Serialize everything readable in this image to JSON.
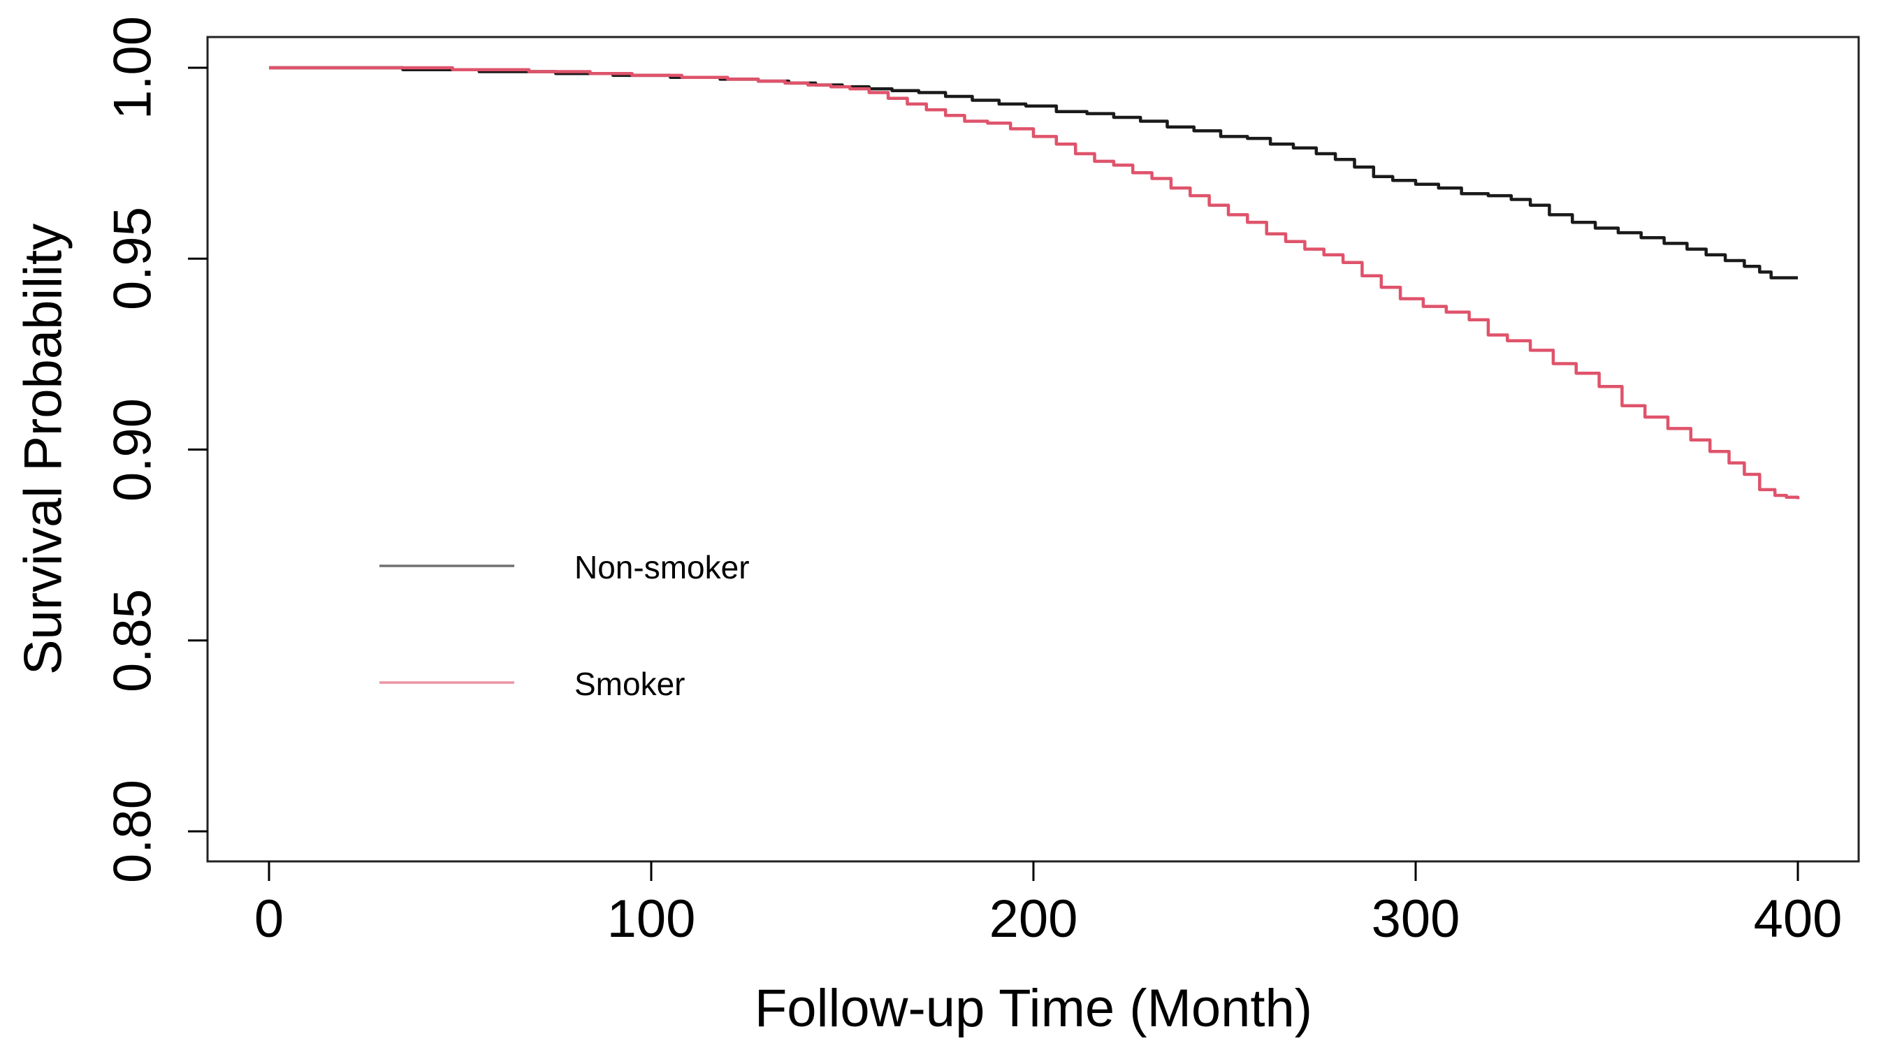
{
  "figure": {
    "background": "#ffffff",
    "frame_color": "#222222"
  },
  "chart_data": {
    "type": "line",
    "subtype": "kaplan-meier-step",
    "title": "",
    "xlabel": "Follow-up Time (Month)",
    "ylabel": "Survival Probability",
    "xlim": [
      0,
      400
    ],
    "ylim": [
      0.8,
      1.0
    ],
    "grid": false,
    "x_ticks": {
      "values": [
        0,
        100,
        200,
        300,
        400
      ],
      "labels": [
        "0",
        "100",
        "200",
        "300",
        "400"
      ]
    },
    "y_ticks": {
      "values": [
        1.0,
        0.95,
        0.9,
        0.85,
        0.8
      ],
      "labels": [
        "1.00",
        "0.95",
        "0.90",
        "0.85",
        "0.80"
      ]
    },
    "legend": {
      "position": "inside-lower-left",
      "entries": [
        {
          "label": "Non-smoker",
          "color": "#1a1a1a"
        },
        {
          "label": "Smoker",
          "color": "#df536b"
        }
      ]
    },
    "series": [
      {
        "name": "Non-smoker",
        "color": "#1a1a1a",
        "step": true,
        "points": [
          [
            0,
            1.0
          ],
          [
            30,
            1.0
          ],
          [
            35,
            0.9995
          ],
          [
            55,
            0.999
          ],
          [
            75,
            0.9985
          ],
          [
            90,
            0.998
          ],
          [
            105,
            0.9975
          ],
          [
            118,
            0.997
          ],
          [
            128,
            0.9965
          ],
          [
            136,
            0.996
          ],
          [
            143,
            0.9955
          ],
          [
            150,
            0.995
          ],
          [
            157,
            0.9945
          ],
          [
            163,
            0.994
          ],
          [
            170,
            0.9935
          ],
          [
            177,
            0.9925
          ],
          [
            184,
            0.9915
          ],
          [
            191,
            0.9905
          ],
          [
            198,
            0.99
          ],
          [
            206,
            0.9885
          ],
          [
            214,
            0.988
          ],
          [
            221,
            0.987
          ],
          [
            228,
            0.986
          ],
          [
            235,
            0.9845
          ],
          [
            242,
            0.9835
          ],
          [
            249,
            0.982
          ],
          [
            256,
            0.9815
          ],
          [
            262,
            0.98
          ],
          [
            268,
            0.979
          ],
          [
            274,
            0.9775
          ],
          [
            279,
            0.976
          ],
          [
            284,
            0.974
          ],
          [
            289,
            0.9715
          ],
          [
            294,
            0.9705
          ],
          [
            300,
            0.9695
          ],
          [
            306,
            0.9685
          ],
          [
            312,
            0.967
          ],
          [
            319,
            0.9665
          ],
          [
            325,
            0.9655
          ],
          [
            330,
            0.964
          ],
          [
            335,
            0.9615
          ],
          [
            341,
            0.9595
          ],
          [
            347,
            0.958
          ],
          [
            353,
            0.9568
          ],
          [
            359,
            0.9555
          ],
          [
            365,
            0.954
          ],
          [
            371,
            0.9525
          ],
          [
            376,
            0.951
          ],
          [
            381,
            0.9495
          ],
          [
            386,
            0.948
          ],
          [
            390,
            0.9465
          ],
          [
            393,
            0.945
          ],
          [
            400,
            0.945
          ]
        ]
      },
      {
        "name": "Smoker",
        "color": "#df536b",
        "step": true,
        "points": [
          [
            0,
            1.0
          ],
          [
            40,
            1.0
          ],
          [
            48,
            0.9995
          ],
          [
            68,
            0.999
          ],
          [
            84,
            0.9985
          ],
          [
            95,
            0.998
          ],
          [
            108,
            0.9975
          ],
          [
            120,
            0.997
          ],
          [
            128,
            0.9965
          ],
          [
            135,
            0.996
          ],
          [
            141,
            0.9955
          ],
          [
            147,
            0.995
          ],
          [
            152,
            0.9945
          ],
          [
            157,
            0.9935
          ],
          [
            162,
            0.992
          ],
          [
            167,
            0.9905
          ],
          [
            172,
            0.989
          ],
          [
            177,
            0.9875
          ],
          [
            182,
            0.986
          ],
          [
            188,
            0.9855
          ],
          [
            194,
            0.984
          ],
          [
            200,
            0.982
          ],
          [
            206,
            0.98
          ],
          [
            211,
            0.9775
          ],
          [
            216,
            0.9755
          ],
          [
            221,
            0.9745
          ],
          [
            226,
            0.9725
          ],
          [
            231,
            0.971
          ],
          [
            236,
            0.9685
          ],
          [
            241,
            0.9665
          ],
          [
            246,
            0.964
          ],
          [
            251,
            0.9615
          ],
          [
            256,
            0.9595
          ],
          [
            261,
            0.9565
          ],
          [
            266,
            0.9545
          ],
          [
            271,
            0.9525
          ],
          [
            276,
            0.951
          ],
          [
            281,
            0.949
          ],
          [
            286,
            0.9455
          ],
          [
            291,
            0.9425
          ],
          [
            296,
            0.9395
          ],
          [
            302,
            0.9375
          ],
          [
            308,
            0.936
          ],
          [
            314,
            0.934
          ],
          [
            319,
            0.93
          ],
          [
            324,
            0.9285
          ],
          [
            330,
            0.926
          ],
          [
            336,
            0.9225
          ],
          [
            342,
            0.92
          ],
          [
            348,
            0.9165
          ],
          [
            354,
            0.9115
          ],
          [
            360,
            0.9085
          ],
          [
            366,
            0.9055
          ],
          [
            372,
            0.9025
          ],
          [
            377,
            0.8995
          ],
          [
            382,
            0.8965
          ],
          [
            386,
            0.8935
          ],
          [
            390,
            0.8895
          ],
          [
            394,
            0.888
          ],
          [
            397,
            0.8875
          ],
          [
            400,
            0.887
          ]
        ]
      }
    ]
  }
}
